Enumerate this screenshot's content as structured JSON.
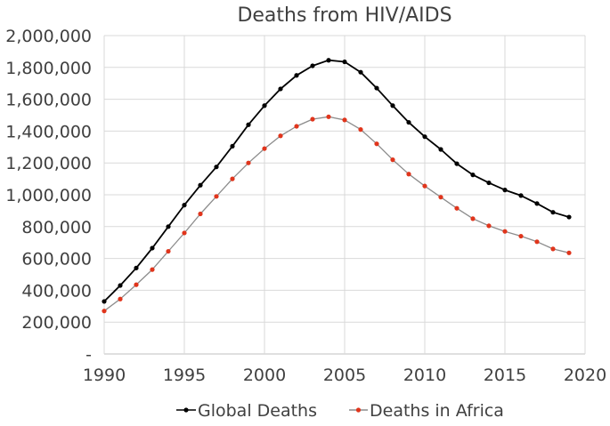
{
  "chart_data": {
    "type": "line",
    "title": "Deaths from HIV/AIDS",
    "xlabel": "",
    "ylabel": "",
    "xlim": [
      1990,
      2020
    ],
    "ylim": [
      0,
      2000000
    ],
    "x_ticks": [
      1990,
      1995,
      2000,
      2005,
      2010,
      2015,
      2020
    ],
    "y_ticks": [
      0,
      200000,
      400000,
      600000,
      800000,
      1000000,
      1200000,
      1400000,
      1600000,
      1800000,
      2000000
    ],
    "y_tick_labels": [
      "-",
      "200,000",
      "400,000",
      "600,000",
      "800,000",
      "1,000,000",
      "1,200,000",
      "1,400,000",
      "1,600,000",
      "1,800,000",
      "2,000,000"
    ],
    "grid": true,
    "legend_position": "bottom",
    "x": [
      1990,
      1991,
      1992,
      1993,
      1994,
      1995,
      1996,
      1997,
      1998,
      1999,
      2000,
      2001,
      2002,
      2003,
      2004,
      2005,
      2006,
      2007,
      2008,
      2009,
      2010,
      2011,
      2012,
      2013,
      2014,
      2015,
      2016,
      2017,
      2018,
      2019
    ],
    "series": [
      {
        "name": "Global Deaths",
        "color": "#000000",
        "marker_color": "#000000",
        "values": [
          330000,
          430000,
          540000,
          665000,
          800000,
          935000,
          1060000,
          1175000,
          1305000,
          1440000,
          1560000,
          1665000,
          1750000,
          1810000,
          1845000,
          1835000,
          1770000,
          1670000,
          1560000,
          1455000,
          1365000,
          1285000,
          1195000,
          1125000,
          1075000,
          1030000,
          995000,
          945000,
          890000,
          860000
        ]
      },
      {
        "name": "Deaths in Africa",
        "color": "#8c8c8c",
        "marker_color": "#e0351c",
        "values": [
          270000,
          345000,
          435000,
          530000,
          645000,
          760000,
          880000,
          990000,
          1100000,
          1200000,
          1290000,
          1370000,
          1430000,
          1475000,
          1490000,
          1470000,
          1410000,
          1320000,
          1220000,
          1130000,
          1055000,
          985000,
          915000,
          850000,
          805000,
          770000,
          740000,
          705000,
          660000,
          635000
        ]
      }
    ]
  }
}
